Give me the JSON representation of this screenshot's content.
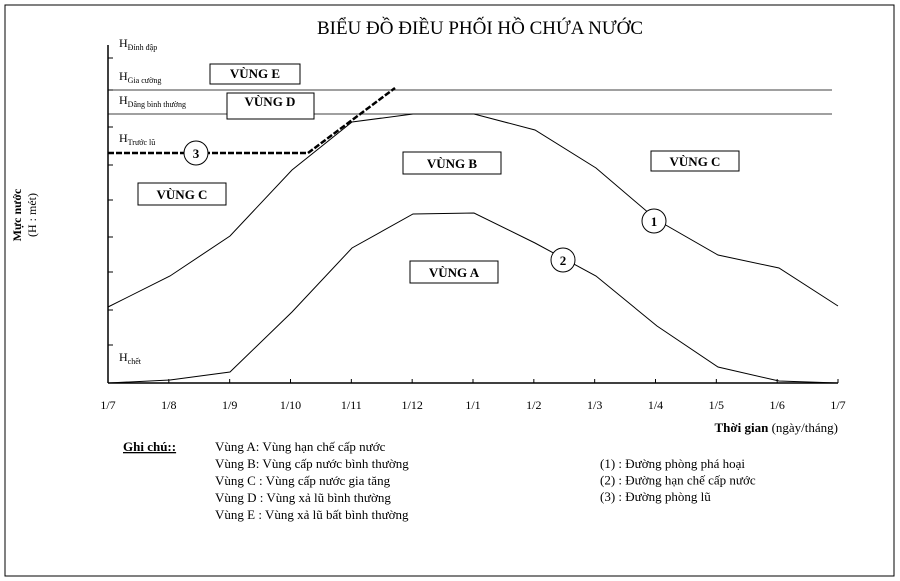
{
  "title": "BIỂU ĐỒ ĐIỀU PHỐI HỒ CHỨA NƯỚC",
  "y_axis_label": [
    "Mực nước",
    "(H : mét)"
  ],
  "x_axis_label": {
    "bold": "Thời gian",
    "rest": " (ngày/tháng)"
  },
  "x_labels": [
    "1/7",
    "1/8",
    "1/9",
    "1/10",
    "1/11",
    "1/12",
    "1/1",
    "1/2",
    "1/3",
    "1/4",
    "1/5",
    "1/6",
    "1/7"
  ],
  "levels": [
    {
      "main": "H",
      "sub": "Đỉnh đập"
    },
    {
      "main": "H",
      "sub": "Gia cường"
    },
    {
      "main": "H",
      "sub": "Dâng bình thường"
    },
    {
      "main": "H",
      "sub": "Trước lũ"
    },
    {
      "main": "H",
      "sub": "chết"
    }
  ],
  "zones": [
    "VÙNG E",
    "VÙNG D",
    "VÙNG B",
    "VÙNG C",
    "VÙNG C",
    "VÙNG A"
  ],
  "curve_labels": [
    "3",
    "1",
    "2"
  ],
  "notes": {
    "heading": "Ghi chú::",
    "zones": [
      "Vùng A: Vùng hạn chế cấp nước",
      "Vùng B: Vùng cấp nước bình thường",
      "Vùng C : Vùng cấp nước gia tăng",
      "Vùng D : Vùng xả lũ bình thường",
      "Vùng E : Vùng xả lũ bất bình thường"
    ],
    "curves": [
      "(1) : Đường phòng phá hoại",
      "(2) : Đường hạn chế cấp nước",
      "(3) : Đường phòng lũ"
    ]
  }
}
